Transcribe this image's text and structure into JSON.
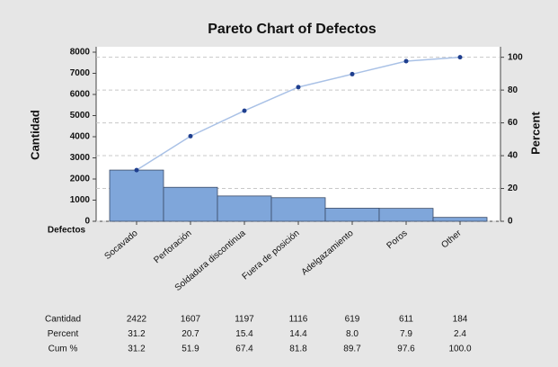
{
  "chart_data": {
    "type": "pareto",
    "title": "Pareto Chart of Defectos",
    "x_label": "Defectos",
    "y_label": "Cantidad",
    "y2_label": "Percent",
    "categories": [
      "Socavado",
      "Perforación",
      "Soldadura discontinua",
      "Fuera de posición",
      "Adelgazamiento",
      "Poros",
      "Other"
    ],
    "series": [
      {
        "name": "Cantidad",
        "color": "#7fa6da",
        "values": [
          2422,
          1607,
          1197,
          1116,
          619,
          611,
          184
        ]
      },
      {
        "name": "Percent",
        "values": [
          31.2,
          20.7,
          15.4,
          14.4,
          8.0,
          7.9,
          2.4
        ],
        "value_labels": [
          "31.2",
          "20.7",
          "15.4",
          "14.4",
          "8.0",
          "7.9",
          "2.4"
        ]
      },
      {
        "name": "Cum %",
        "color": "#1f3f8f",
        "axis": "y2",
        "values": [
          31.2,
          51.9,
          67.4,
          81.8,
          89.7,
          97.6,
          100.0
        ],
        "value_labels": [
          "31.2",
          "51.9",
          "67.4",
          "81.8",
          "89.7",
          "97.6",
          "100.0"
        ]
      }
    ],
    "ylim": [
      0,
      8000
    ],
    "yticks": [
      0,
      1000,
      2000,
      3000,
      4000,
      5000,
      6000,
      7000,
      8000
    ],
    "y2lim": [
      0,
      103.1
    ],
    "y2ticks": [
      0,
      20,
      40,
      60,
      80,
      100
    ],
    "grid": true
  }
}
